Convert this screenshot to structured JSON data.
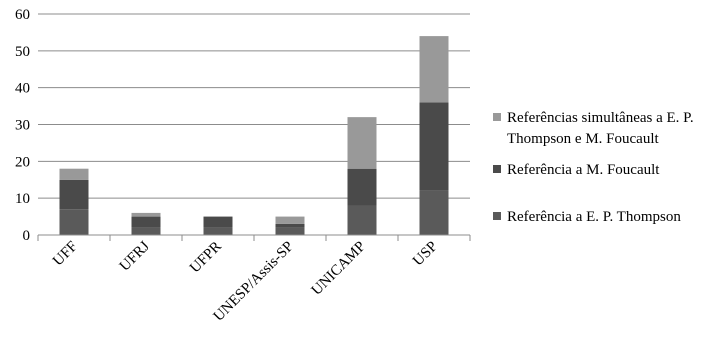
{
  "chart_data": {
    "type": "bar",
    "stacked": true,
    "categories": [
      "UFF",
      "UFRJ",
      "UFPR",
      "UNESP/Assis-SP",
      "UNICAMP",
      "USP"
    ],
    "series": [
      {
        "name": "Referência a E. P. Thompson",
        "values": [
          7,
          2,
          2,
          2,
          8,
          12
        ],
        "color": "#5a5a5a"
      },
      {
        "name": "Referência a M. Foucault",
        "values": [
          8,
          3,
          3,
          1,
          10,
          24
        ],
        "color": "#4a4a4a"
      },
      {
        "name": "Referências simultâneas a E. P. Thompson e M. Foucault",
        "values": [
          3,
          1,
          0,
          2,
          14,
          18
        ],
        "color": "#999999"
      }
    ],
    "yticks": [
      "0",
      "10",
      "20",
      "30",
      "40",
      "50",
      "60"
    ],
    "ylim": [
      0,
      60
    ],
    "grid": true,
    "legend_position": "right"
  }
}
